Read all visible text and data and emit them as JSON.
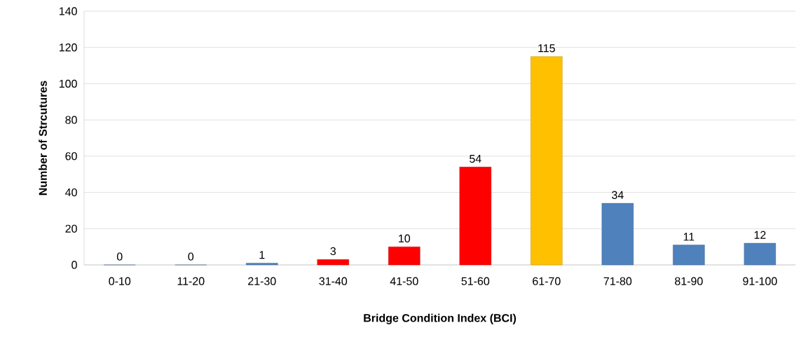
{
  "chart_data": {
    "type": "bar",
    "xlabel": "Bridge Condition Index (BCI)",
    "ylabel": "Number of Strcutures",
    "categories": [
      "0-10",
      "11-20",
      "21-30",
      "31-40",
      "41-50",
      "51-60",
      "61-70",
      "71-80",
      "81-90",
      "91-100"
    ],
    "values": [
      0,
      0,
      1,
      3,
      10,
      54,
      115,
      34,
      11,
      12
    ],
    "colors": [
      "#4f81bd",
      "#4f81bd",
      "#4f81bd",
      "#ff0000",
      "#ff0000",
      "#ff0000",
      "#ffc000",
      "#4f81bd",
      "#4f81bd",
      "#4f81bd"
    ],
    "ylim": [
      0,
      140
    ],
    "yticks": [
      0,
      20,
      40,
      60,
      80,
      100,
      120,
      140
    ],
    "grid": "y",
    "data_labels": true
  }
}
